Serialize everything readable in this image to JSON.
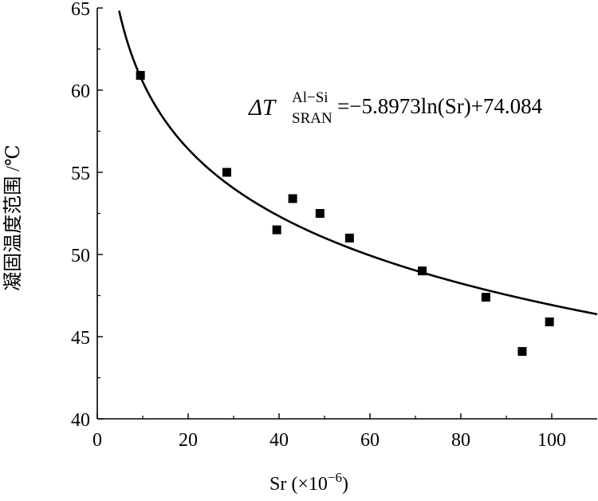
{
  "chart_data": {
    "type": "scatter",
    "xlabel_main": "Sr",
    "xlabel_unit_open": " (",
    "xlabel_unit_base": "×10",
    "xlabel_unit_exp": "−6",
    "xlabel_unit_close": ")",
    "ylabel": "凝固温度范围 /℃",
    "xlim": [
      0,
      110
    ],
    "ylim": [
      40,
      65
    ],
    "x_ticks": [
      0,
      20,
      40,
      60,
      80,
      100
    ],
    "y_ticks": [
      40,
      45,
      50,
      55,
      60,
      65
    ],
    "grid": false,
    "series": [
      {
        "x": [
          9.5,
          28.5,
          39.5,
          43,
          49,
          55.5,
          71.5,
          85.5,
          93.5,
          99.5
        ],
        "y": [
          60.9,
          55.0,
          51.5,
          53.4,
          52.5,
          51.0,
          49.0,
          47.4,
          44.1,
          45.9
        ]
      }
    ],
    "fit": {
      "a": -5.8973,
      "b": 74.084,
      "x_range": [
        4.8,
        110
      ]
    },
    "equation": {
      "delta": "Δ",
      "var": "T",
      "superscript": "Al−Si",
      "subscript": "SRAN",
      "rhs": "=−5.8973ln(Sr)+74.084"
    }
  }
}
